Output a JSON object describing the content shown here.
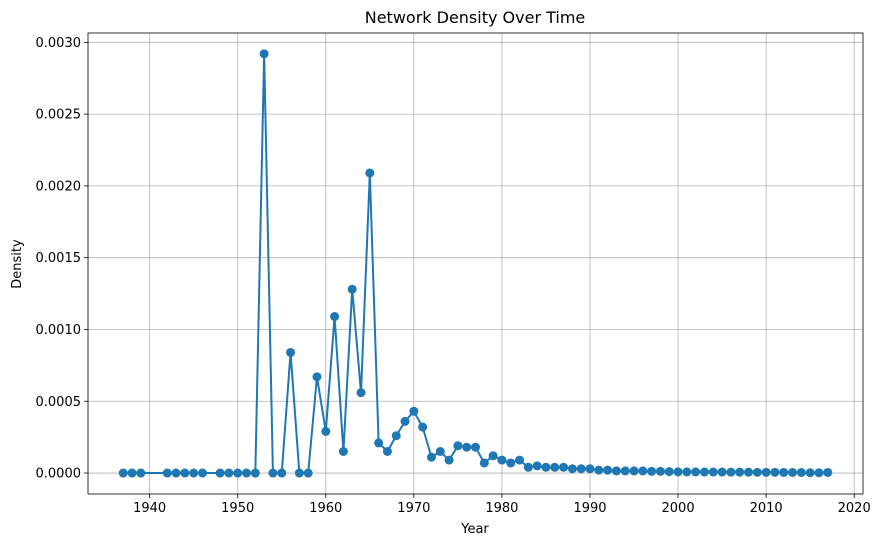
{
  "chart_data": {
    "type": "line",
    "title": "Network Density Over Time",
    "xlabel": "Year",
    "ylabel": "Density",
    "xlim": [
      1933,
      2021
    ],
    "ylim": [
      -0.000146,
      0.003065
    ],
    "x_ticks": [
      1940,
      1950,
      1960,
      1970,
      1980,
      1990,
      2000,
      2010,
      2020
    ],
    "x_tick_labels": [
      "1940",
      "1950",
      "1960",
      "1970",
      "1980",
      "1990",
      "2000",
      "2010",
      "2020"
    ],
    "y_ticks": [
      0,
      0.0005,
      0.001,
      0.0015,
      0.002,
      0.0025,
      0.003
    ],
    "y_tick_labels": [
      "0.0000",
      "0.0005",
      "0.0010",
      "0.0015",
      "0.0020",
      "0.0025",
      "0.0030"
    ],
    "grid": true,
    "legend": "none",
    "colors": {
      "series": "#1f77b4",
      "grid": "#b0b0b0",
      "axis": "#000000"
    },
    "series": [
      {
        "marker": "circle",
        "x": [
          1937,
          1938,
          1939,
          1942,
          1943,
          1944,
          1945,
          1946,
          1948,
          1949,
          1950,
          1951,
          1952,
          1953,
          1954,
          1955,
          1956,
          1957,
          1958,
          1959,
          1960,
          1961,
          1962,
          1963,
          1964,
          1965,
          1966,
          1967,
          1968,
          1969,
          1970,
          1971,
          1972,
          1973,
          1974,
          1975,
          1976,
          1977,
          1978,
          1979,
          1980,
          1981,
          1982,
          1983,
          1984,
          1985,
          1986,
          1987,
          1988,
          1989,
          1990,
          1991,
          1992,
          1993,
          1994,
          1995,
          1996,
          1997,
          1998,
          1999,
          2000,
          2001,
          2002,
          2003,
          2004,
          2005,
          2006,
          2007,
          2008,
          2009,
          2010,
          2011,
          2012,
          2013,
          2014,
          2015,
          2016,
          2017
        ],
        "values": [
          0,
          0,
          0,
          0,
          0,
          0,
          0,
          0,
          0,
          0,
          0,
          0,
          0,
          0.00292,
          0,
          0,
          0.00084,
          0,
          0,
          0.00067,
          0.00029,
          0.00109,
          0.00015,
          0.00128,
          0.00056,
          0.00209,
          0.00021,
          0.00015,
          0.00026,
          0.00036,
          0.00043,
          0.00032,
          0.00011,
          0.00015,
          9e-05,
          0.00019,
          0.00018,
          0.00018,
          7e-05,
          0.00012,
          9e-05,
          7e-05,
          9e-05,
          4e-05,
          5e-05,
          4e-05,
          4e-05,
          4e-05,
          3e-05,
          3e-05,
          3e-05,
          2e-05,
          2e-05,
          1.5e-05,
          1.5e-05,
          1.5e-05,
          1.5e-05,
          1.2e-05,
          1.2e-05,
          1e-05,
          8e-06,
          8e-06,
          8e-06,
          7e-06,
          7e-06,
          7e-06,
          6e-06,
          6e-06,
          6e-06,
          5e-06,
          5e-06,
          5e-06,
          4e-06,
          4e-06,
          4e-06,
          2e-06,
          2e-06,
          4e-06
        ]
      }
    ]
  }
}
